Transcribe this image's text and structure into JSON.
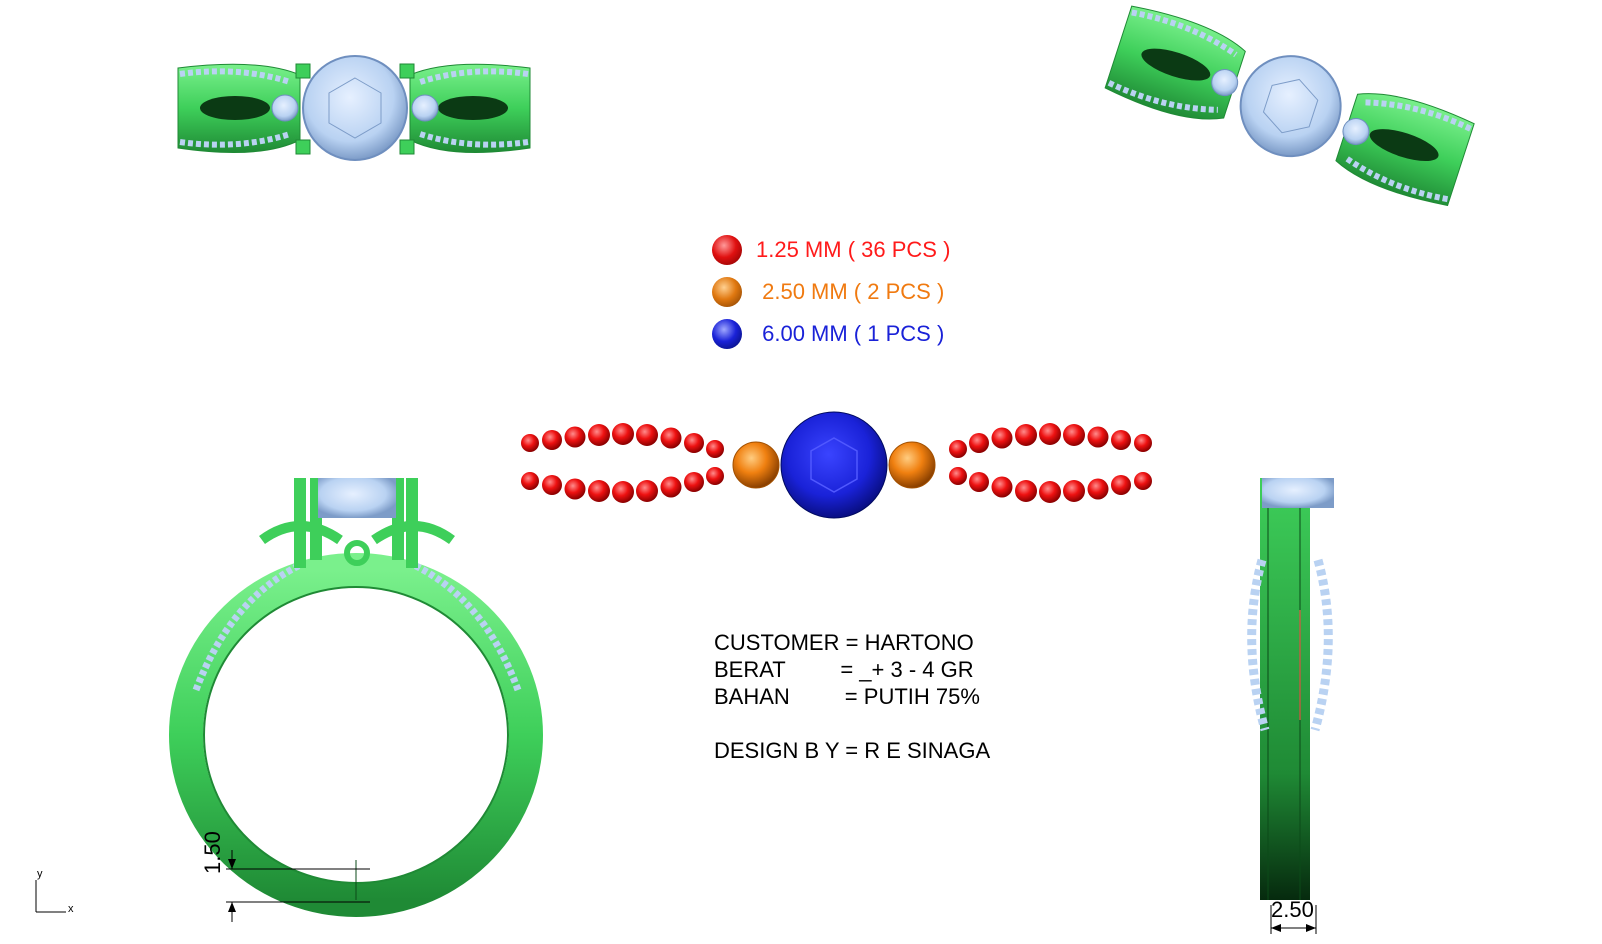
{
  "legend": [
    {
      "size": "1.25 MM ( 36 PCS )",
      "color": "#ff1a1a"
    },
    {
      "size": " 2.50 MM ( 2 PCS )",
      "color": "#f07a10"
    },
    {
      "size": " 6.00 MM ( 1 PCS )",
      "color": "#1a22d8"
    }
  ],
  "specs": {
    "customer": "CUSTOMER = HARTONO",
    "berat": "BERAT         = _+ 3 - 4 GR",
    "bahan": "BAHAN         = PUTIH 75%",
    "design": "DESIGN B Y = R E SINAGA"
  },
  "dimensions": {
    "shank_thickness": "1.50",
    "shank_width": "2.50"
  },
  "axes": {
    "x": "x",
    "y": "y"
  },
  "colors": {
    "metal": "#3ecf5a",
    "metal_dark": "#0b4a18",
    "stone": "#b9d2f2",
    "small_stone": "#ff1a1a",
    "side_stone": "#f07a10",
    "center_stone": "#1a22d8"
  }
}
